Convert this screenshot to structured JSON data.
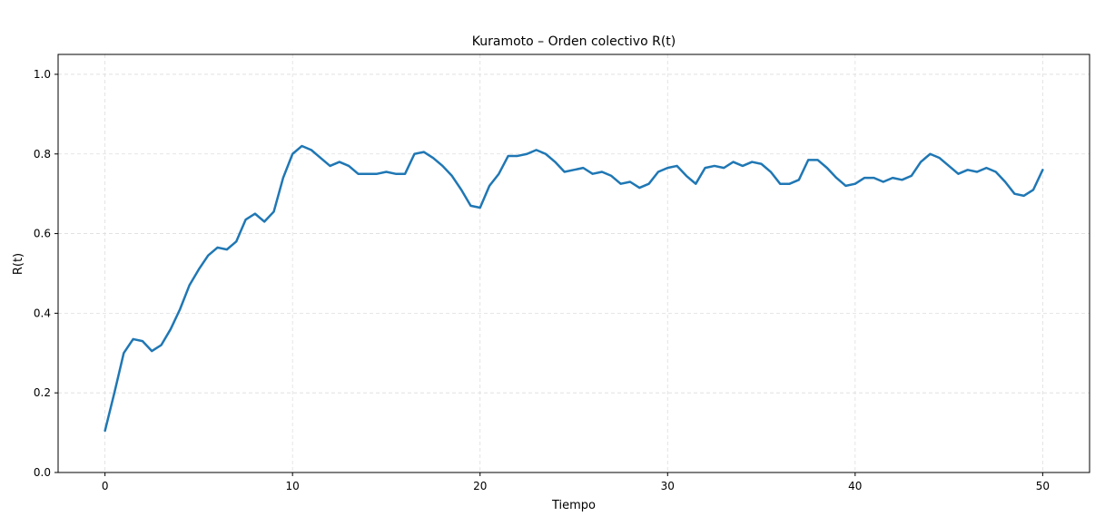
{
  "chart_data": {
    "type": "line",
    "title": "Kuramoto – Orden colectivo R(t)",
    "xlabel": "Tiempo",
    "ylabel": "R(t)",
    "x": [
      0,
      0.5,
      1,
      1.5,
      2,
      2.5,
      3,
      3.5,
      4,
      4.5,
      5,
      5.5,
      6,
      6.5,
      7,
      7.5,
      8,
      8.5,
      9,
      9.5,
      10,
      10.5,
      11,
      11.5,
      12,
      12.5,
      13,
      13.5,
      14,
      14.5,
      15,
      15.5,
      16,
      16.5,
      17,
      17.5,
      18,
      18.5,
      19,
      19.5,
      20,
      20.5,
      21,
      21.5,
      22,
      22.5,
      23,
      23.5,
      24,
      24.5,
      25,
      25.5,
      26,
      26.5,
      27,
      27.5,
      28,
      28.5,
      29,
      29.5,
      30,
      30.5,
      31,
      31.5,
      32,
      32.5,
      33,
      33.5,
      34,
      34.5,
      35,
      35.5,
      36,
      36.5,
      37,
      37.5,
      38,
      38.5,
      39,
      39.5,
      40,
      40.5,
      41,
      41.5,
      42,
      42.5,
      43,
      43.5,
      44,
      44.5,
      45,
      45.5,
      46,
      46.5,
      47,
      47.5,
      48,
      48.5,
      49,
      49.5,
      50
    ],
    "series": [
      {
        "name": "R(t)",
        "color": "#1f77b4",
        "values": [
          0.105,
          0.2,
          0.3,
          0.335,
          0.33,
          0.305,
          0.32,
          0.36,
          0.41,
          0.47,
          0.51,
          0.545,
          0.565,
          0.56,
          0.58,
          0.635,
          0.65,
          0.63,
          0.655,
          0.74,
          0.8,
          0.82,
          0.81,
          0.79,
          0.77,
          0.78,
          0.77,
          0.75,
          0.75,
          0.75,
          0.755,
          0.75,
          0.75,
          0.8,
          0.805,
          0.79,
          0.77,
          0.745,
          0.71,
          0.67,
          0.665,
          0.72,
          0.75,
          0.795,
          0.795,
          0.8,
          0.81,
          0.8,
          0.78,
          0.755,
          0.76,
          0.765,
          0.75,
          0.755,
          0.745,
          0.725,
          0.73,
          0.715,
          0.725,
          0.755,
          0.765,
          0.77,
          0.745,
          0.725,
          0.765,
          0.77,
          0.765,
          0.78,
          0.77,
          0.78,
          0.775,
          0.755,
          0.725,
          0.725,
          0.735,
          0.785,
          0.785,
          0.765,
          0.74,
          0.72,
          0.725,
          0.74,
          0.74,
          0.73,
          0.74,
          0.735,
          0.745,
          0.78,
          0.8,
          0.79,
          0.77,
          0.75,
          0.76,
          0.755,
          0.765,
          0.755,
          0.73,
          0.7,
          0.695,
          0.71,
          0.76
        ]
      }
    ],
    "xlim": [
      -2.5,
      52.5
    ],
    "xticks": [
      0,
      10,
      20,
      30,
      40,
      50
    ],
    "ylim": [
      0,
      1.05
    ],
    "yticks": [
      {
        "value": 0,
        "label": "0.0"
      },
      0.2,
      0.4,
      0.6,
      0.8,
      {
        "value": 1,
        "label": "1.0"
      }
    ],
    "grid": true
  }
}
